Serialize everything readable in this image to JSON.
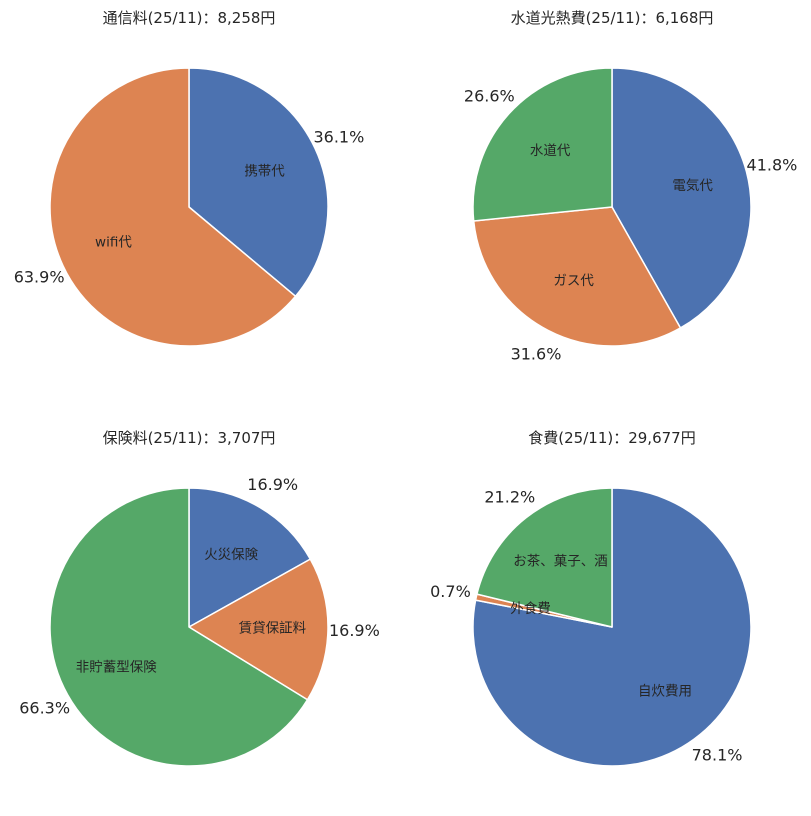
{
  "chart_data": [
    {
      "type": "pie",
      "title": "通信料(25/11)：8,258円",
      "start_angle_deg": 90,
      "direction": "clockwise",
      "slices": [
        {
          "label": "携帯代",
          "percent": 36.1,
          "percent_label": "36.1%",
          "color": "#4c72b0"
        },
        {
          "label": "wifi代",
          "percent": 63.9,
          "percent_label": "63.9%",
          "color": "#dd8452"
        }
      ]
    },
    {
      "type": "pie",
      "title": "水道光熱費(25/11)：6,168円",
      "start_angle_deg": 90,
      "direction": "clockwise",
      "slices": [
        {
          "label": "電気代",
          "percent": 41.8,
          "percent_label": "41.8%",
          "color": "#4c72b0"
        },
        {
          "label": "ガス代",
          "percent": 31.6,
          "percent_label": "31.6%",
          "color": "#dd8452"
        },
        {
          "label": "水道代",
          "percent": 26.6,
          "percent_label": "26.6%",
          "color": "#55a868"
        }
      ]
    },
    {
      "type": "pie",
      "title": "保険料(25/11)：3,707円",
      "start_angle_deg": 90,
      "direction": "clockwise",
      "slices": [
        {
          "label": "火災保険",
          "percent": 16.9,
          "percent_label": "16.9%",
          "color": "#4c72b0"
        },
        {
          "label": "賃貸保証料",
          "percent": 16.9,
          "percent_label": "16.9%",
          "color": "#dd8452"
        },
        {
          "label": "非貯蓄型保険",
          "percent": 66.3,
          "percent_label": "66.3%",
          "color": "#55a868"
        }
      ]
    },
    {
      "type": "pie",
      "title": "食費(25/11)：29,677円",
      "start_angle_deg": 90,
      "direction": "clockwise",
      "slices": [
        {
          "label": "自炊費用",
          "percent": 78.1,
          "percent_label": "78.1%",
          "color": "#4c72b0"
        },
        {
          "label": "外食費",
          "percent": 0.7,
          "percent_label": "0.7%",
          "color": "#dd8452"
        },
        {
          "label": "お茶、菓子、酒",
          "percent": 21.2,
          "percent_label": "21.2%",
          "color": "#55a868"
        }
      ]
    }
  ]
}
